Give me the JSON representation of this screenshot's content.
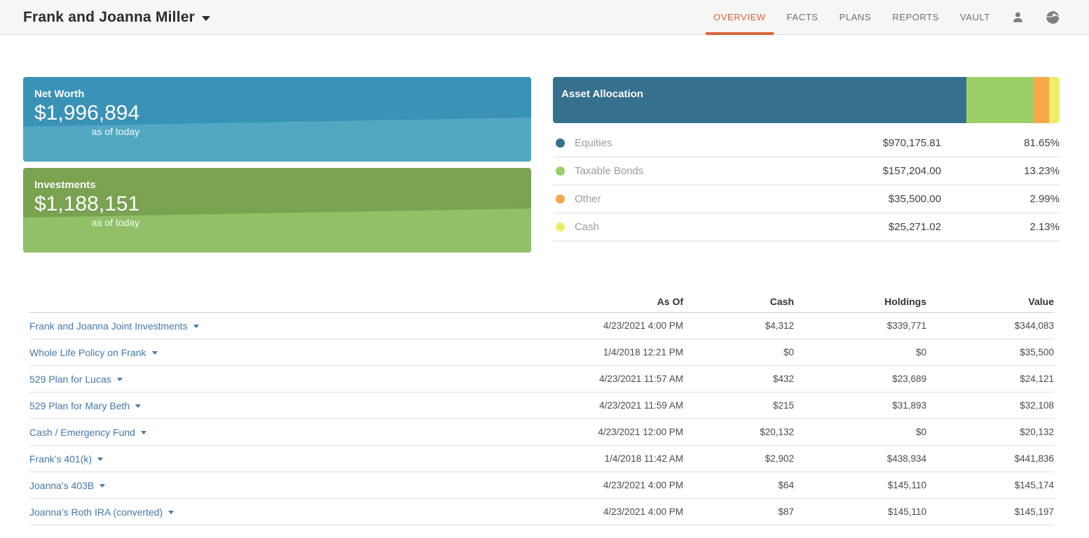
{
  "header": {
    "client_name": "Frank and Joanna Miller",
    "nav": [
      {
        "label": "OVERVIEW",
        "active": true
      },
      {
        "label": "FACTS",
        "active": false
      },
      {
        "label": "PLANS",
        "active": false
      },
      {
        "label": "REPORTS",
        "active": false
      },
      {
        "label": "VAULT",
        "active": false
      }
    ],
    "icons": [
      "user-icon",
      "globe-icon"
    ],
    "accent_color": "#d9653b"
  },
  "summary_cards": [
    {
      "title": "Net Worth",
      "value": "$1,996,894",
      "caption": "as of today",
      "color_top": "#3a93b6",
      "color_bottom": "#52a8c3"
    },
    {
      "title": "Investments",
      "value": "$1,188,151",
      "caption": "as of today",
      "color_top": "#7aa351",
      "color_bottom": "#91c068"
    }
  ],
  "asset_allocation": {
    "title": "Asset Allocation",
    "items": [
      {
        "label": "Equities",
        "value": "$970,175.81",
        "percent": "81.65%",
        "pct": 81.65,
        "color": "#36708f"
      },
      {
        "label": "Taxable Bonds",
        "value": "$157,204.00",
        "percent": "13.23%",
        "pct": 13.23,
        "color": "#9bd068"
      },
      {
        "label": "Other",
        "value": "$35,500.00",
        "percent": "2.99%",
        "pct": 2.99,
        "color": "#f8a84a"
      },
      {
        "label": "Cash",
        "value": "$25,271.02",
        "percent": "2.13%",
        "pct": 2.13,
        "color": "#efec6b"
      }
    ]
  },
  "accounts_table": {
    "columns": [
      "As Of",
      "Cash",
      "Holdings",
      "Value"
    ],
    "rows": [
      {
        "name": "Frank and Joanna Joint Investments",
        "as_of": "4/23/2021 4:00 PM",
        "cash": "$4,312",
        "holdings": "$339,771",
        "value": "$344,083"
      },
      {
        "name": "Whole Life Policy on Frank",
        "as_of": "1/4/2018 12:21 PM",
        "cash": "$0",
        "holdings": "$0",
        "value": "$35,500"
      },
      {
        "name": "529 Plan for Lucas",
        "as_of": "4/23/2021 11:57 AM",
        "cash": "$432",
        "holdings": "$23,689",
        "value": "$24,121"
      },
      {
        "name": "529 Plan for Mary Beth",
        "as_of": "4/23/2021 11:59 AM",
        "cash": "$215",
        "holdings": "$31,893",
        "value": "$32,108"
      },
      {
        "name": "Cash / Emergency Fund",
        "as_of": "4/23/2021 12:00 PM",
        "cash": "$20,132",
        "holdings": "$0",
        "value": "$20,132"
      },
      {
        "name": "Frank's 401(k)",
        "as_of": "1/4/2018 11:42 AM",
        "cash": "$2,902",
        "holdings": "$438,934",
        "value": "$441,836"
      },
      {
        "name": "Joanna's 403B",
        "as_of": "4/23/2021 4:00 PM",
        "cash": "$64",
        "holdings": "$145,110",
        "value": "$145,174"
      },
      {
        "name": "Joanna's Roth IRA (converted)",
        "as_of": "4/23/2021 4:00 PM",
        "cash": "$87",
        "holdings": "$145,110",
        "value": "$145,197"
      }
    ]
  }
}
